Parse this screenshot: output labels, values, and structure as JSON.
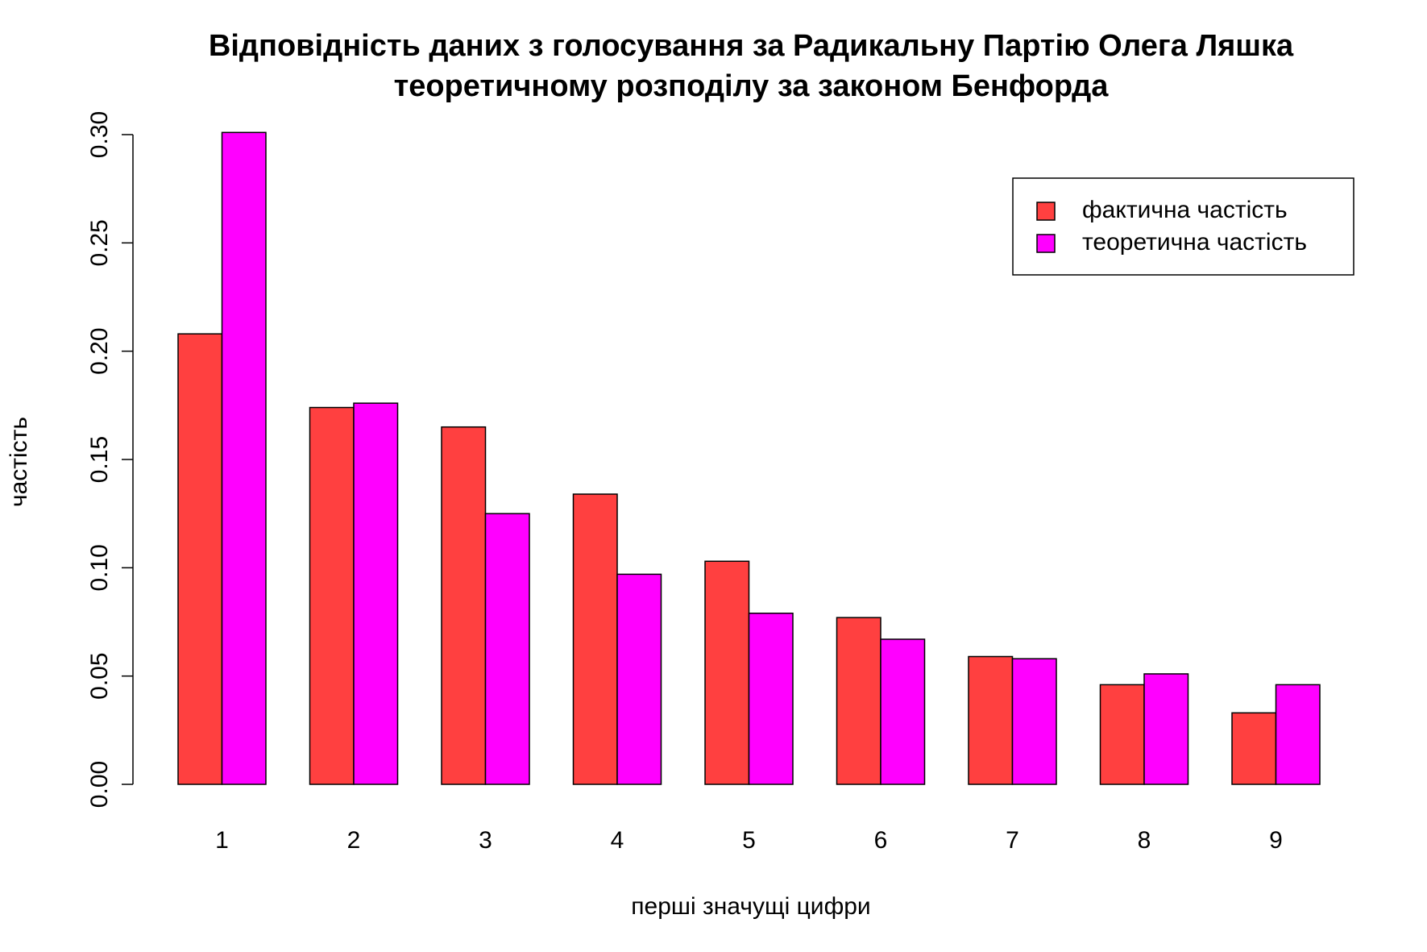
{
  "chart_data": {
    "type": "bar",
    "title": [
      "Відповідність даних з голосування за Радикальну Партію Олега Ляшка",
      "теоретичному розподілу за законом Бенфорда"
    ],
    "x_label": "перші значущі цифри",
    "y_label": "частість",
    "categories": [
      "1",
      "2",
      "3",
      "4",
      "5",
      "6",
      "7",
      "8",
      "9"
    ],
    "series": [
      {
        "name": "фактична частість",
        "color": "#ff4040",
        "values": [
          0.208,
          0.174,
          0.165,
          0.134,
          0.103,
          0.077,
          0.059,
          0.046,
          0.033
        ]
      },
      {
        "name": "теоретична частість",
        "color": "#ff00ff",
        "values": [
          0.301,
          0.176,
          0.125,
          0.097,
          0.079,
          0.067,
          0.058,
          0.051,
          0.046
        ]
      }
    ],
    "ylim": [
      0,
      0.3
    ],
    "yticks": [
      {
        "value": 0,
        "label": "0.00"
      },
      0.05,
      {
        "value": 0.1,
        "label": "0.10"
      },
      0.15,
      {
        "value": 0.2,
        "label": "0.20"
      },
      0.25,
      {
        "value": 0.3,
        "label": "0.30"
      }
    ],
    "legend": "topright"
  }
}
